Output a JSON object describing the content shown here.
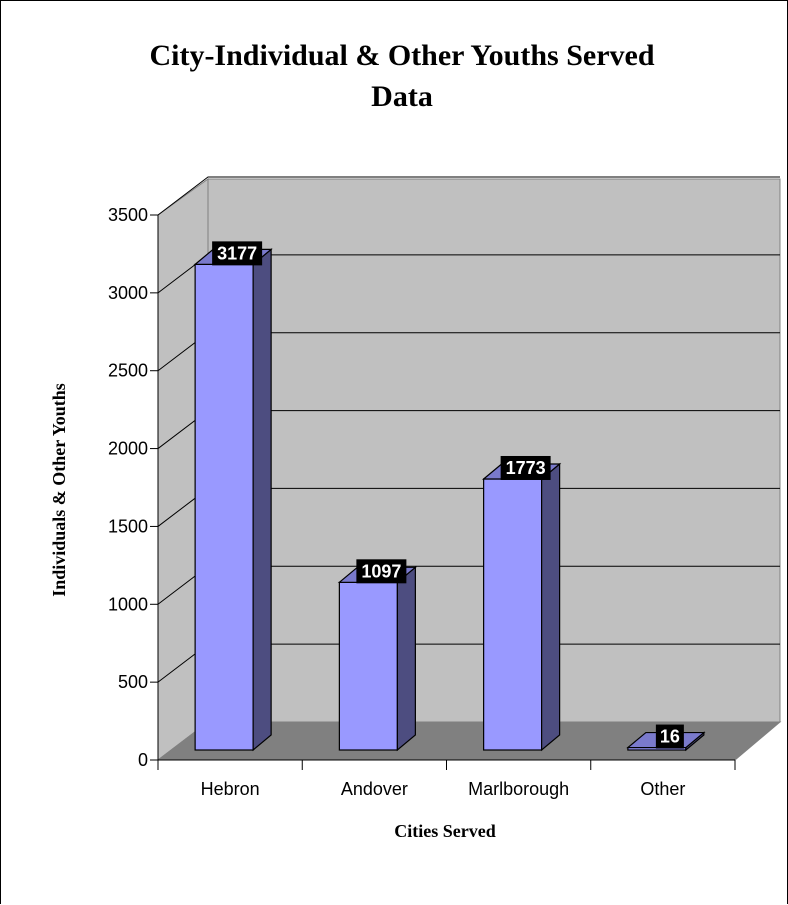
{
  "chart_data": {
    "type": "bar",
    "title_lines": [
      "City-Individual & Other Youths Served",
      "Data"
    ],
    "xlabel": "Cities Served",
    "ylabel": "Individuals & Other Youths",
    "categories": [
      "Hebron",
      "Andover",
      "Marlborough",
      "Other"
    ],
    "values": [
      3177,
      1097,
      1773,
      16
    ],
    "ylim": [
      0,
      3500
    ],
    "yticks": [
      0,
      500,
      1000,
      1500,
      2000,
      2500,
      3000,
      3500
    ],
    "grid": true,
    "legend": "none",
    "colors": {
      "bar_front": "#9999ff",
      "bar_side": "#4d4d80",
      "bar_top": "#7a7acc",
      "wall": "#c0c0c0",
      "floor": "#808080",
      "label_bg": "#000000",
      "label_text": "#ffffff"
    }
  }
}
